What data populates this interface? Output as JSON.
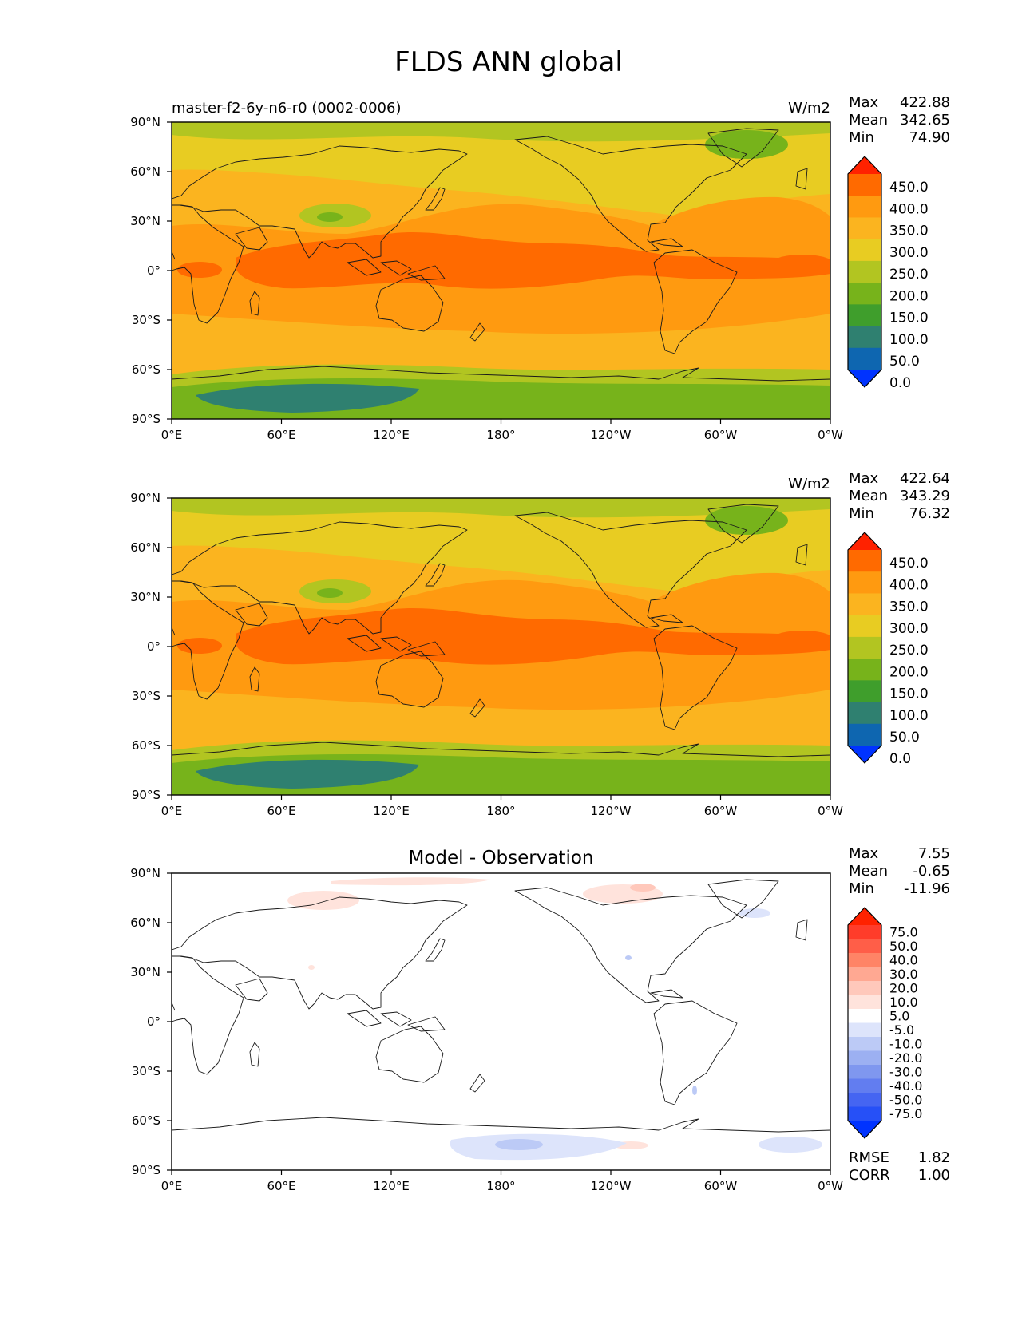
{
  "figure": {
    "title": "FLDS ANN global"
  },
  "axes": {
    "lat_labels": [
      "90°N",
      "60°N",
      "30°N",
      "0°",
      "30°S",
      "60°S",
      "90°S"
    ],
    "lon_labels": [
      "0°E",
      "60°E",
      "120°E",
      "180°",
      "120°W",
      "60°W",
      "0°W"
    ]
  },
  "panels": [
    {
      "left_title": "master-f2-6y-n6-r0 (0002-0006)",
      "center_title": "",
      "units": "W/m2",
      "stats": [
        {
          "label": "Max",
          "value": "422.88"
        },
        {
          "label": "Mean",
          "value": "342.65"
        },
        {
          "label": "Min",
          "value": "74.90"
        }
      ],
      "colorbar": {
        "labels": [
          "450.0",
          "400.0",
          "350.0",
          "300.0",
          "250.0",
          "200.0",
          "150.0",
          "100.0",
          "50.0",
          "0.0"
        ],
        "colors": [
          "#ff2200",
          "#ff6a00",
          "#ff9a10",
          "#fbb41f",
          "#e8cc22",
          "#b2c521",
          "#77b31b",
          "#3f9e2c",
          "#2f8070",
          "#0e66b0",
          "#0033ff"
        ]
      }
    },
    {
      "left_title": "",
      "center_title": "",
      "units": "W/m2",
      "stats": [
        {
          "label": "Max",
          "value": "422.64"
        },
        {
          "label": "Mean",
          "value": "343.29"
        },
        {
          "label": "Min",
          "value": "76.32"
        }
      ],
      "colorbar": {
        "labels": [
          "450.0",
          "400.0",
          "350.0",
          "300.0",
          "250.0",
          "200.0",
          "150.0",
          "100.0",
          "50.0",
          "0.0"
        ],
        "colors": [
          "#ff2200",
          "#ff6a00",
          "#ff9a10",
          "#fbb41f",
          "#e8cc22",
          "#b2c521",
          "#77b31b",
          "#3f9e2c",
          "#2f8070",
          "#0e66b0",
          "#0033ff"
        ]
      }
    },
    {
      "left_title": "",
      "center_title": "Model - Observation",
      "units": "",
      "stats": [
        {
          "label": "Max",
          "value": "7.55"
        },
        {
          "label": "Mean",
          "value": "-0.65"
        },
        {
          "label": "Min",
          "value": "-11.96"
        }
      ],
      "colorbar": {
        "labels": [
          "75.0",
          "50.0",
          "40.0",
          "30.0",
          "20.0",
          "10.0",
          "5.0",
          "-5.0",
          "-10.0",
          "-20.0",
          "-30.0",
          "-40.0",
          "-50.0",
          "-75.0"
        ],
        "colors": [
          "#ff2200",
          "#ff3c2a",
          "#ff5e48",
          "#ff8466",
          "#ffa892",
          "#ffc8bb",
          "#ffe3dc",
          "#ffffff",
          "#dde4fb",
          "#bccaf6",
          "#9cb0f2",
          "#7f97ef",
          "#627df0",
          "#4565f2",
          "#2650f7",
          "#0033ff"
        ]
      },
      "metrics": [
        {
          "label": "RMSE",
          "value": "1.82"
        },
        {
          "label": "CORR",
          "value": "1.00"
        }
      ]
    }
  ]
}
